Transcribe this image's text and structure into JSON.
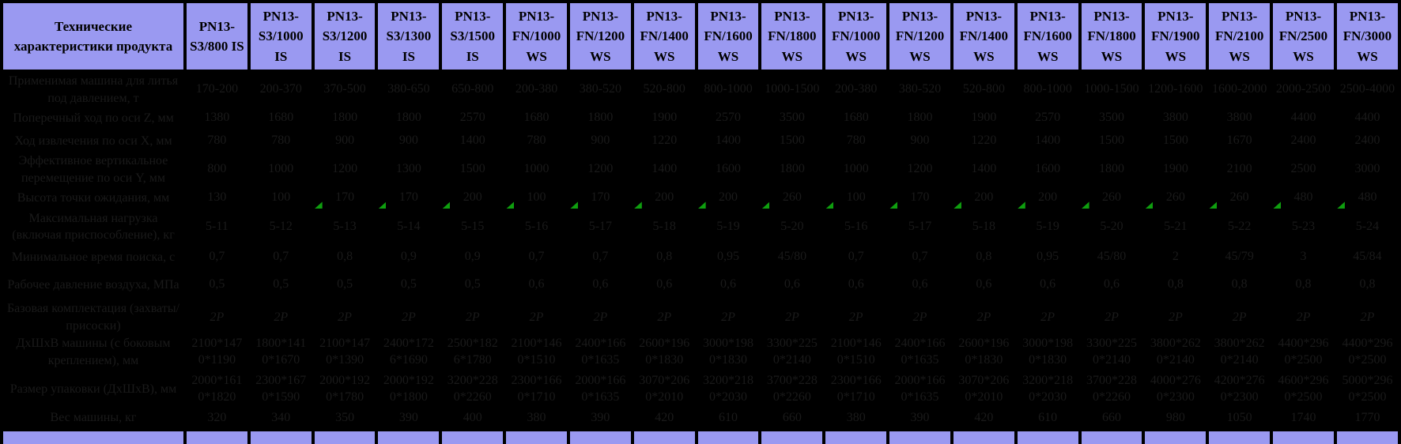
{
  "table": {
    "corner_header": "Технические характеристики продукта",
    "columns": [
      "PN13-S3/800 IS",
      "PN13-S3/1000 IS",
      "PN13-S3/1200 IS",
      "PN13-S3/1300 IS",
      "PN13-S3/1500 IS",
      "PN13-FN/1000 WS",
      "PN13-FN/1200 WS",
      "PN13-FN/1400 WS",
      "PN13-FN/1600 WS",
      "PN13-FN/1800 WS",
      "PN13-FN/1000 WS",
      "PN13-FN/1200 WS",
      "PN13-FN/1400 WS",
      "PN13-FN/1600 WS",
      "PN13-FN/1800 WS",
      "PN13-FN/1900 WS",
      "PN13-FN/2100 WS",
      "PN13-FN/2500 WS",
      "PN13-FN/3000 WS"
    ],
    "marker_start_column": 3,
    "rows": [
      {
        "label": "Применимая машина для литья под давлением, т",
        "values": [
          "170-200",
          "200-370",
          "370-500",
          "380-650",
          "650-800",
          "200-380",
          "380-520",
          "520-800",
          "800-1000",
          "1000-1500",
          "200-380",
          "380-520",
          "520-800",
          "800-1000",
          "1000-1500",
          "1200-1600",
          "1600-2000",
          "2000-2500",
          "2500-4000"
        ]
      },
      {
        "label": "Поперечный ход по оси Z, мм",
        "values": [
          "1380",
          "1680",
          "1800",
          "1800",
          "2570",
          "1680",
          "1800",
          "1900",
          "2570",
          "3500",
          "1680",
          "1800",
          "1900",
          "2570",
          "3500",
          "3800",
          "3800",
          "4400",
          "4400"
        ]
      },
      {
        "label": "Ход извлечения по оси X, мм",
        "values": [
          "780",
          "780",
          "900",
          "900",
          "1400",
          "780",
          "900",
          "1220",
          "1400",
          "1500",
          "780",
          "900",
          "1220",
          "1400",
          "1500",
          "1500",
          "1670",
          "2400",
          "2400"
        ]
      },
      {
        "label": "Эффективное вертикальное перемещение по оси Y, мм",
        "values": [
          "800",
          "1000",
          "1200",
          "1300",
          "1500",
          "1000",
          "1200",
          "1400",
          "1600",
          "1800",
          "1000",
          "1200",
          "1400",
          "1600",
          "1800",
          "1900",
          "2100",
          "2500",
          "3000"
        ]
      },
      {
        "label": "Высота точки ожидания, мм",
        "values": [
          "130",
          "100",
          "170",
          "170",
          "200",
          "100",
          "170",
          "200",
          "200",
          "260",
          "100",
          "170",
          "200",
          "200",
          "260",
          "260",
          "260",
          "480",
          "480"
        ]
      },
      {
        "label": "Максимальная нагрузка (включая приспособление), кг",
        "markers": true,
        "values": [
          "5-11",
          "5-12",
          "5-13",
          "5-14",
          "5-15",
          "5-16",
          "5-17",
          "5-18",
          "5-19",
          "5-20",
          "5-16",
          "5-17",
          "5-18",
          "5-19",
          "5-20",
          "5-21",
          "5-22",
          "5-23",
          "5-24"
        ]
      },
      {
        "label": "Минимальное время поиска, с",
        "values": [
          "0,7",
          "0,7",
          "0,8",
          "0,9",
          "0,9",
          "0,7",
          "0,7",
          "0,8",
          "0,95",
          "45/80",
          "0,7",
          "0,7",
          "0,8",
          "0,95",
          "45/80",
          "2",
          "45/79",
          "3",
          "45/84"
        ]
      },
      {
        "label": "Рабочее давление воздуха, МПа",
        "values": [
          "0,5",
          "0,5",
          "0,5",
          "0,5",
          "0,5",
          "0,6",
          "0,6",
          "0,6",
          "0,6",
          "0,6",
          "0,6",
          "0,6",
          "0,6",
          "0,6",
          "0,6",
          "0,8",
          "0,8",
          "0,8",
          "0,8"
        ]
      },
      {
        "label": "Базовая комплектация (захваты/присоски)",
        "italic": true,
        "values": [
          "2Р",
          "2Р",
          "2Р",
          "2Р",
          "2Р",
          "2Р",
          "2Р",
          "2Р",
          "2Р",
          "2Р",
          "2Р",
          "2Р",
          "2Р",
          "2Р",
          "2Р",
          "2Р",
          "2Р",
          "2Р",
          "2Р"
        ]
      },
      {
        "label": "ДхШхВ машины (с боковым креплением), мм",
        "dims": true,
        "values": [
          "2100*1470*1190",
          "1800*1410*1670",
          "2100*1470*1390",
          "2400*1726*1690",
          "2500*1826*1780",
          "2100*1460*1510",
          "2400*1660*1635",
          "2600*1960*1830",
          "3000*1980*1830",
          "3300*2250*2140",
          "2100*1460*1510",
          "2400*1660*1635",
          "2600*1960*1830",
          "3000*1980*1830",
          "3300*2250*2140",
          "3800*2620*2140",
          "3800*2620*2140",
          "4400*2960*2500",
          "4400*2960*2500"
        ]
      },
      {
        "label": "Размер упаковки (ДхШхВ), мм",
        "dims": true,
        "values": [
          "2000*1610*1820",
          "2300*1670*1590",
          "2000*1920*1780",
          "2000*1920*1800",
          "3200*2280*2260",
          "2300*1660*1710",
          "2000*1660*1635",
          "3070*2060*2010",
          "3200*2180*2030",
          "3700*2280*2260",
          "2300*1660*1710",
          "2000*1660*1635",
          "3070*2060*2010",
          "3200*2180*2030",
          "3700*2280*2260",
          "4000*2760*2300",
          "4200*2760*2300",
          "4600*2960*2500",
          "5000*2960*2500"
        ]
      },
      {
        "label": "Вес машины, кг",
        "values": [
          "320",
          "340",
          "350",
          "390",
          "400",
          "380",
          "390",
          "420",
          "610",
          "660",
          "380",
          "390",
          "420",
          "610",
          "660",
          "980",
          "1050",
          "1740",
          "1770"
        ]
      }
    ],
    "colors": {
      "header_bg": "#9a99f1",
      "body_bg": "#000000",
      "body_text": "#1a1a1a",
      "marker_green": "#0f9e0f"
    }
  }
}
